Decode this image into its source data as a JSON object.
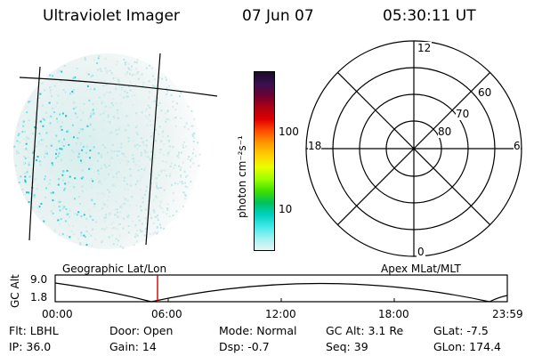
{
  "header": {
    "instrument": "Ultraviolet Imager",
    "date": "07 Jun 07",
    "time": "05:30:11 UT"
  },
  "colorbar": {
    "label": "photon cm⁻²s⁻¹",
    "ticks": [
      "100",
      "10"
    ],
    "colors": [
      "#1a0a2a",
      "#3a1050",
      "#700030",
      "#b00010",
      "#e00000",
      "#ff5000",
      "#ff9a00",
      "#ffd000",
      "#e8ff00",
      "#9cff00",
      "#40e000",
      "#00c060",
      "#00d0c0",
      "#40e8e8",
      "#a0f0f0",
      "#e8f4f4"
    ]
  },
  "polar": {
    "mlt_labels": {
      "top": "12",
      "left": "18",
      "right": "6",
      "bottom": "0"
    },
    "lat_labels": [
      "60",
      "70",
      "80"
    ]
  },
  "timeline": {
    "left_label": "Geographic Lat/Lon",
    "right_label": "Apex MLat/MLT",
    "axis_title": "GC Alt",
    "y_ticks": [
      "9.0",
      "1.8"
    ],
    "x_ticks": [
      "00:00",
      "06:00",
      "12:00",
      "18:00",
      "23:59"
    ],
    "marker_color": "#cc0000"
  },
  "info": {
    "flt": "Flt: LBHL",
    "ip": "IP: 36.0",
    "door": "Door: Open",
    "gain": "Gain: 14",
    "mode": "Mode: Normal",
    "dsp": "Dsp:    -0.7",
    "gcalt": "GC Alt: 3.1 Re",
    "seq": "Seq: 39",
    "glat": "GLat:   -7.5",
    "glon": "GLon: 174.4"
  }
}
